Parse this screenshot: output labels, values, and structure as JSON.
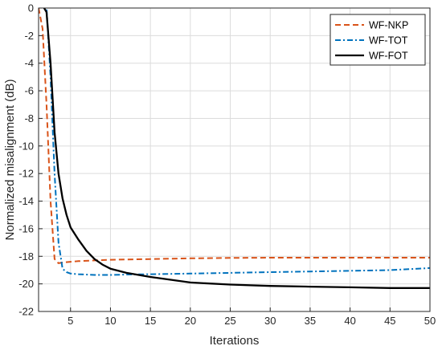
{
  "chart_data": {
    "type": "line",
    "title": "",
    "xlabel": "Iterations",
    "ylabel": "Normalized misalignment (dB)",
    "xlim": [
      1,
      50
    ],
    "ylim": [
      -22,
      0
    ],
    "xticks": [
      5,
      10,
      15,
      20,
      25,
      30,
      35,
      40,
      45,
      50
    ],
    "yticks": [
      0,
      -2,
      -4,
      -6,
      -8,
      -10,
      -12,
      -14,
      -16,
      -18,
      -20,
      -22
    ],
    "grid": true,
    "legend": "top-right",
    "series": [
      {
        "name": "WF-NKP",
        "color": "#d95319",
        "style": "dashed",
        "x": [
          1,
          1.5,
          2,
          2.5,
          3,
          3.5,
          4,
          5,
          6,
          8,
          10,
          15,
          20,
          25,
          30,
          35,
          40,
          45,
          50
        ],
        "y": [
          0,
          -1.5,
          -7,
          -14,
          -18.2,
          -18.5,
          -18.45,
          -18.4,
          -18.35,
          -18.3,
          -18.25,
          -18.2,
          -18.15,
          -18.12,
          -18.1,
          -18.1,
          -18.1,
          -18.1,
          -18.1
        ]
      },
      {
        "name": "WF-TOT",
        "color": "#0072bd",
        "style": "dashdot",
        "x": [
          1,
          1.5,
          2,
          2.5,
          3,
          3.5,
          4,
          4.5,
          5,
          6,
          8,
          10,
          12,
          15,
          20,
          25,
          30,
          35,
          40,
          45,
          50
        ],
        "y": [
          0.5,
          0.2,
          0,
          -5,
          -12,
          -17,
          -18.9,
          -19.15,
          -19.25,
          -19.3,
          -19.35,
          -19.35,
          -19.32,
          -19.3,
          -19.25,
          -19.2,
          -19.15,
          -19.1,
          -19.05,
          -19.0,
          -18.85
        ]
      },
      {
        "name": "WF-FOT",
        "color": "#000000",
        "style": "solid",
        "x": [
          1,
          1.5,
          2,
          2.5,
          3,
          3.5,
          4,
          4.5,
          5,
          6,
          7,
          8,
          9,
          10,
          12,
          15,
          20,
          25,
          30,
          35,
          40,
          45,
          50
        ],
        "y": [
          0.3,
          0.2,
          -0.3,
          -4,
          -9,
          -12,
          -13.8,
          -15,
          -15.9,
          -16.8,
          -17.6,
          -18.2,
          -18.6,
          -18.9,
          -19.2,
          -19.5,
          -19.9,
          -20.05,
          -20.15,
          -20.2,
          -20.25,
          -20.3,
          -20.3
        ]
      }
    ]
  }
}
